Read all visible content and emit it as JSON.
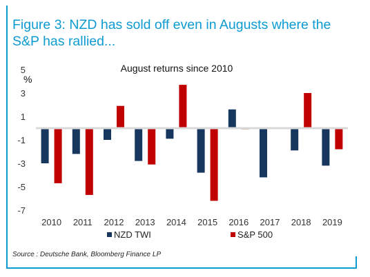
{
  "figure": {
    "title": "Figure 3: NZD has sold off even in Augusts where the S&P has rallied...",
    "source": "Source : Deutsche Bank, Bloomberg Finance LP",
    "accent_color": "#0b9bd1"
  },
  "chart_data": {
    "type": "bar",
    "title": "August returns since 2010",
    "ylabel": "%",
    "xlabel": "",
    "categories": [
      "2010",
      "2011",
      "2012",
      "2013",
      "2014",
      "2015",
      "2016",
      "2017",
      "2018",
      "2019"
    ],
    "ylim": [
      -7,
      5
    ],
    "yticks": [
      5,
      3,
      1,
      -1,
      -3,
      -5,
      -7
    ],
    "grid": false,
    "legend_position": "bottom",
    "series": [
      {
        "name": "NZD TWI",
        "color": "#17375e",
        "values": [
          -3.0,
          -2.2,
          -1.0,
          -2.8,
          -0.9,
          -3.8,
          1.6,
          -4.2,
          -1.9,
          -3.2
        ]
      },
      {
        "name": "S&P 500",
        "color": "#c00000",
        "values": [
          -4.7,
          -5.7,
          1.9,
          -3.1,
          3.7,
          -6.2,
          -0.1,
          0.0,
          3.0,
          -1.8
        ]
      }
    ]
  }
}
